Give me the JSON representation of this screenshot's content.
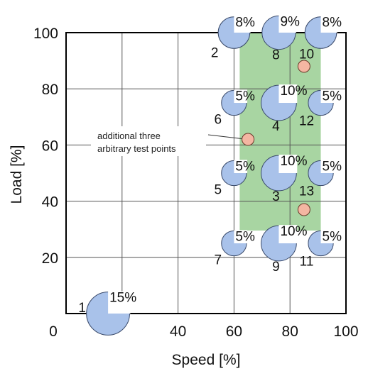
{
  "chart_data": {
    "type": "scatter",
    "xlabel": "Speed [%]",
    "ylabel": "Load [%]",
    "xlim": [
      0,
      100
    ],
    "ylim": [
      0,
      100
    ],
    "x_ticks": [
      0,
      40,
      60,
      80,
      100
    ],
    "x_tick_labels": [
      "0",
      "40",
      "60",
      "80",
      "100"
    ],
    "y_ticks": [
      20,
      40,
      60,
      80,
      100
    ],
    "y_tick_labels": [
      "20",
      "40",
      "60",
      "80",
      "100"
    ],
    "grid": true,
    "test_region": {
      "x": [
        60,
        91
      ],
      "y": [
        25,
        100
      ],
      "color": "#a8d5a2"
    },
    "modes": [
      {
        "id": "1",
        "speed": 15,
        "load": 0,
        "weight": "15%"
      },
      {
        "id": "2",
        "speed": 60,
        "load": 100,
        "weight": "8%"
      },
      {
        "id": "8",
        "speed": 76,
        "load": 100,
        "weight": "9%"
      },
      {
        "id": "10",
        "speed": 91,
        "load": 100,
        "weight": "8%"
      },
      {
        "id": "6",
        "speed": 60,
        "load": 75,
        "weight": "5%"
      },
      {
        "id": "4",
        "speed": 76,
        "load": 75,
        "weight": "10%"
      },
      {
        "id": "12",
        "speed": 91,
        "load": 75,
        "weight": "5%"
      },
      {
        "id": "5",
        "speed": 60,
        "load": 50,
        "weight": "5%"
      },
      {
        "id": "3",
        "speed": 76,
        "load": 50,
        "weight": "10%"
      },
      {
        "id": "13",
        "speed": 91,
        "load": 50,
        "weight": "5%"
      },
      {
        "id": "7",
        "speed": 60,
        "load": 25,
        "weight": "5%"
      },
      {
        "id": "9",
        "speed": 76,
        "load": 25,
        "weight": "10%"
      },
      {
        "id": "11",
        "speed": 91,
        "load": 25,
        "weight": "5%"
      }
    ],
    "test_points": [
      {
        "speed": 65,
        "load": 62
      },
      {
        "speed": 85,
        "load": 88
      },
      {
        "speed": 85,
        "load": 37
      }
    ],
    "annotation": {
      "lines": [
        "additional three",
        "arbitrary test points"
      ]
    },
    "colors": {
      "mode_fill": "#a9c2ea",
      "mode_stroke": "#3a4a6a",
      "test_point_fill": "#f4b6a2",
      "test_point_stroke": "#6a3a2a"
    }
  }
}
